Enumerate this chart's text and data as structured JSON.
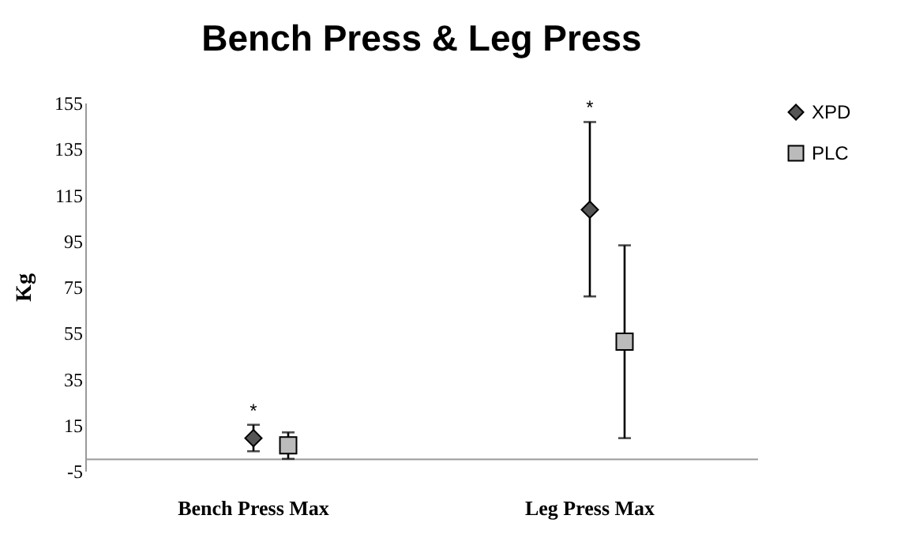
{
  "chart_data": {
    "type": "scatter",
    "title": "Bench Press & Leg Press",
    "ylabel": "Kg",
    "categories": [
      "Bench Press Max",
      "Leg Press Max"
    ],
    "series": [
      {
        "name": "XPD",
        "color": "#555555",
        "marker": "diamond",
        "values": [
          9.2,
          108.5
        ],
        "errors": [
          [
            3.5,
            15
          ],
          [
            70.8,
            146.6
          ]
        ]
      },
      {
        "name": "PLC",
        "color": "#bbbbbb",
        "marker": "square",
        "values": [
          6.1,
          51.1
        ],
        "errors": [
          [
            0.2,
            11.7
          ],
          [
            9.2,
            93
          ]
        ]
      }
    ],
    "ylim": [
      -5,
      155
    ],
    "yticks": [
      -5,
      15,
      35,
      55,
      75,
      95,
      115,
      135,
      155
    ],
    "grid": false,
    "legend": "right",
    "annotations": [
      "*",
      "*"
    ]
  }
}
